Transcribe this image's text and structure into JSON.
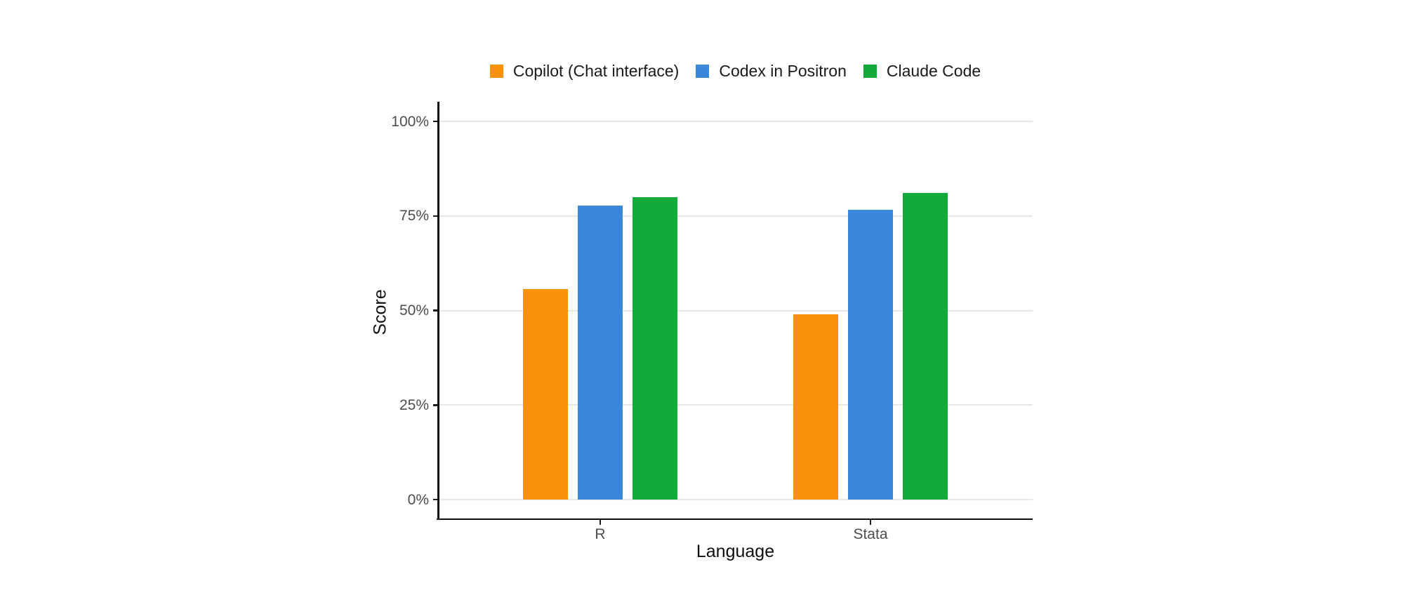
{
  "chart_data": {
    "type": "bar",
    "title": "",
    "xlabel": "Language",
    "ylabel": "Score",
    "categories": [
      "R",
      "Stata"
    ],
    "series": [
      {
        "name": "Copilot (Chat interface)",
        "color": "#F8910B",
        "values": [
          55.6,
          48.9
        ]
      },
      {
        "name": "Codex in Positron",
        "color": "#3A88DB",
        "values": [
          77.8,
          76.7
        ]
      },
      {
        "name": "Claude Code",
        "color": "#12AA3B",
        "values": [
          80.0,
          81.1
        ]
      }
    ],
    "ylim": [
      0,
      100
    ],
    "yticks": [
      0,
      25,
      50,
      75,
      100
    ],
    "ytick_labels": [
      "0%",
      "25%",
      "50%",
      "75%",
      "100%"
    ],
    "grid": "horizontal-only",
    "legend_position": "top-center",
    "style": {
      "background_color": "#ffffff",
      "gridline_color": "#e8e8e8",
      "axis_line_color": "#0f0f0f",
      "tick_label_color": "#4d4d4d",
      "axis_title_color": "#0f0f0f",
      "legend_text_color": "#1a1a1a"
    }
  }
}
